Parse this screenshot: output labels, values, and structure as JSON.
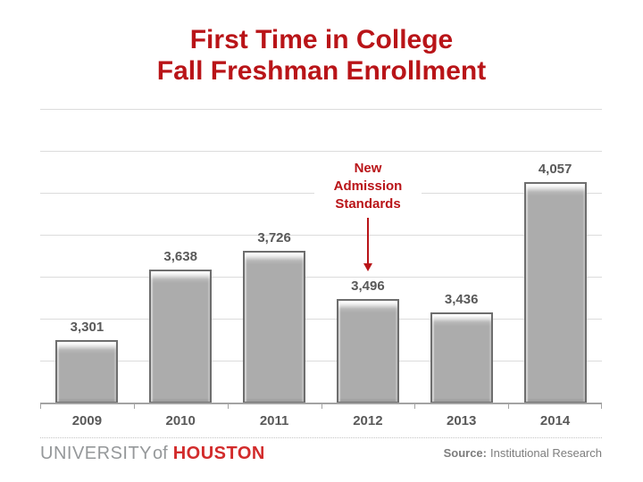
{
  "title": {
    "line1": "First Time in College",
    "line2": "Fall Freshman Enrollment"
  },
  "annotation": {
    "lines": [
      "New",
      "Admission",
      "Standards"
    ]
  },
  "footer": {
    "logo_university": "UNIVERSITY",
    "logo_of": "of",
    "logo_houston": "HOUSTON",
    "source_label": "Source:",
    "source_value": "Institutional Research"
  },
  "colors": {
    "title_red": "#B91418",
    "houston_red": "#D22B2B",
    "bar_fill": "#ACACAC",
    "bar_border": "#6E6E6E",
    "text_gray": "#595959",
    "gridline_gray": "#DCDCDC",
    "axis_gray": "#A3A3A3",
    "footer_text_gray": "#7D7D7D",
    "university_gray": "#95989A"
  },
  "chart_data": {
    "type": "bar",
    "title": "First Time in College Fall Freshman Enrollment",
    "categories": [
      "2009",
      "2010",
      "2011",
      "2012",
      "2013",
      "2014"
    ],
    "values": [
      3301,
      3638,
      3726,
      3496,
      3436,
      4057
    ],
    "value_labels": [
      "3,301",
      "3,638",
      "3,726",
      "3,496",
      "3,436",
      "4,057"
    ],
    "xlabel": "",
    "ylabel": "",
    "ylim": [
      3000,
      4400
    ],
    "gridline_interval": 200,
    "grid": true,
    "legend": false,
    "bar_color": "gray",
    "annotation": {
      "text": "New Admission Standards",
      "target_category": "2012"
    }
  }
}
